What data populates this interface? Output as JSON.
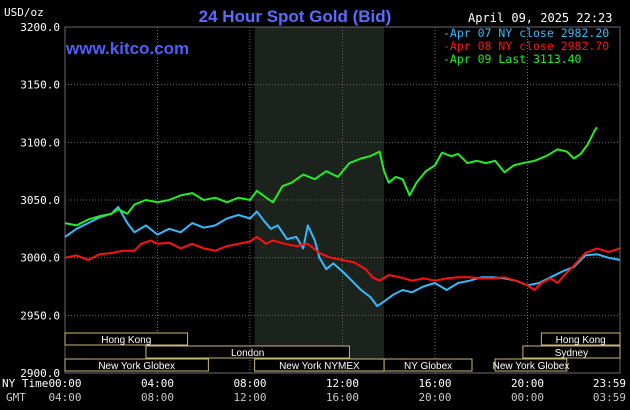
{
  "title": "24 Hour Spot Gold (Bid)",
  "timestamp": "April 09, 2025 22:23",
  "unit_label": "USD/oz",
  "site_label": "www.kitco.com",
  "time_row_labels": {
    "ny": "NY Time",
    "gmt": "GMT"
  },
  "colors": {
    "background": "#000000",
    "plot_background": "#000000",
    "session_shade": "#1c221c",
    "grid": "#6a6a6a",
    "title": "#5a6cff",
    "site": "#4f5dff",
    "apr07": "#33bbff",
    "apr08": "#ff1111",
    "apr09": "#22ee22",
    "session_box": "#c8b878",
    "text": "#ffffff",
    "gmt_text": "#c8c8c8"
  },
  "chart_data": {
    "type": "line",
    "title": "24 Hour Spot Gold (Bid)",
    "ylabel": "USD/oz",
    "ylim": [
      2900,
      3200
    ],
    "y_ticks": [
      {
        "value": 3200,
        "label": "3200.0"
      },
      {
        "value": 3150,
        "label": "3150.0"
      },
      {
        "value": 3100,
        "label": "3100.0"
      },
      {
        "value": 3050,
        "label": "3050.0"
      },
      {
        "value": 3000,
        "label": "3000.0"
      },
      {
        "value": 2950,
        "label": "2950.0"
      },
      {
        "value": 2900,
        "label": "2900.0"
      }
    ],
    "xlim": [
      0,
      24
    ],
    "x_ticks": [
      {
        "hour": 0,
        "ny": "00:00",
        "gmt": "04:00"
      },
      {
        "hour": 4,
        "ny": "04:00",
        "gmt": "08:00"
      },
      {
        "hour": 8,
        "ny": "08:00",
        "gmt": "12:00"
      },
      {
        "hour": 12,
        "ny": "12:00",
        "gmt": "16:00"
      },
      {
        "hour": 16,
        "ny": "16:00",
        "gmt": "20:00"
      },
      {
        "hour": 20,
        "ny": "20:00",
        "gmt": "00:00"
      },
      {
        "hour": 24,
        "ny": "23:59",
        "gmt": "03:59"
      }
    ],
    "grid": true,
    "legend_position": "top-right",
    "shaded_session": [
      8.2,
      13.8
    ],
    "series": [
      {
        "name": "Apr 07 NY close 2982.20",
        "color_key": "apr07",
        "points": [
          [
            0,
            3018
          ],
          [
            0.5,
            3025
          ],
          [
            1,
            3030
          ],
          [
            1.5,
            3035
          ],
          [
            2,
            3038
          ],
          [
            2.3,
            3044
          ],
          [
            2.7,
            3030
          ],
          [
            3,
            3022
          ],
          [
            3.5,
            3028
          ],
          [
            4,
            3020
          ],
          [
            4.5,
            3025
          ],
          [
            5,
            3022
          ],
          [
            5.5,
            3030
          ],
          [
            6,
            3026
          ],
          [
            6.5,
            3028
          ],
          [
            7,
            3034
          ],
          [
            7.5,
            3037
          ],
          [
            8,
            3034
          ],
          [
            8.3,
            3040
          ],
          [
            8.6,
            3032
          ],
          [
            8.9,
            3025
          ],
          [
            9.2,
            3028
          ],
          [
            9.6,
            3016
          ],
          [
            10,
            3018
          ],
          [
            10.3,
            3008
          ],
          [
            10.5,
            3028
          ],
          [
            10.8,
            3015
          ],
          [
            11,
            3000
          ],
          [
            11.3,
            2990
          ],
          [
            11.6,
            2995
          ],
          [
            12,
            2988
          ],
          [
            12.4,
            2980
          ],
          [
            12.8,
            2972
          ],
          [
            13.2,
            2966
          ],
          [
            13.5,
            2958
          ],
          [
            13.8,
            2962
          ],
          [
            14.2,
            2968
          ],
          [
            14.6,
            2972
          ],
          [
            15,
            2970
          ],
          [
            15.5,
            2975
          ],
          [
            16,
            2978
          ],
          [
            16.5,
            2972
          ],
          [
            17,
            2978
          ],
          [
            17.5,
            2980
          ],
          [
            18,
            2983
          ],
          [
            18.5,
            2983
          ],
          [
            19,
            2982
          ],
          [
            19.5,
            2980
          ],
          [
            20,
            2976
          ],
          [
            20.5,
            2978
          ],
          [
            21,
            2983
          ],
          [
            21.5,
            2988
          ],
          [
            22,
            2992
          ],
          [
            22.5,
            3002
          ],
          [
            23,
            3003
          ],
          [
            23.5,
            3000
          ],
          [
            24,
            2998
          ]
        ]
      },
      {
        "name": "Apr 08 NY close 2982.70",
        "color_key": "apr08",
        "points": [
          [
            0,
            3000
          ],
          [
            0.5,
            3002
          ],
          [
            1,
            2998
          ],
          [
            1.5,
            3003
          ],
          [
            2,
            3004
          ],
          [
            2.5,
            3006
          ],
          [
            3,
            3006
          ],
          [
            3.3,
            3012
          ],
          [
            3.7,
            3015
          ],
          [
            4,
            3012
          ],
          [
            4.5,
            3013
          ],
          [
            5,
            3008
          ],
          [
            5.5,
            3012
          ],
          [
            6,
            3008
          ],
          [
            6.5,
            3006
          ],
          [
            7,
            3010
          ],
          [
            7.5,
            3012
          ],
          [
            8,
            3014
          ],
          [
            8.3,
            3018
          ],
          [
            8.7,
            3012
          ],
          [
            9,
            3015
          ],
          [
            9.5,
            3012
          ],
          [
            10,
            3010
          ],
          [
            10.5,
            3012
          ],
          [
            11,
            3004
          ],
          [
            11.5,
            3000
          ],
          [
            12,
            2998
          ],
          [
            12.5,
            2996
          ],
          [
            13,
            2990
          ],
          [
            13.3,
            2983
          ],
          [
            13.6,
            2980
          ],
          [
            14,
            2985
          ],
          [
            14.5,
            2983
          ],
          [
            15,
            2980
          ],
          [
            15.5,
            2982
          ],
          [
            16,
            2980
          ],
          [
            16.5,
            2982
          ],
          [
            17,
            2983
          ],
          [
            17.5,
            2983
          ],
          [
            18,
            2982
          ],
          [
            18.5,
            2982
          ],
          [
            19,
            2983
          ],
          [
            19.5,
            2980
          ],
          [
            20,
            2976
          ],
          [
            20.3,
            2972
          ],
          [
            20.6,
            2978
          ],
          [
            21,
            2982
          ],
          [
            21.3,
            2978
          ],
          [
            21.6,
            2985
          ],
          [
            22,
            2993
          ],
          [
            22.5,
            3004
          ],
          [
            23,
            3008
          ],
          [
            23.5,
            3005
          ],
          [
            24,
            3008
          ]
        ]
      },
      {
        "name": "Apr 09 Last 3113.40",
        "color_key": "apr09",
        "points": [
          [
            0,
            3030
          ],
          [
            0.5,
            3028
          ],
          [
            1,
            3033
          ],
          [
            1.5,
            3036
          ],
          [
            2,
            3038
          ],
          [
            2.3,
            3042
          ],
          [
            2.7,
            3038
          ],
          [
            3,
            3046
          ],
          [
            3.5,
            3050
          ],
          [
            4,
            3048
          ],
          [
            4.5,
            3050
          ],
          [
            5,
            3054
          ],
          [
            5.5,
            3056
          ],
          [
            6,
            3050
          ],
          [
            6.5,
            3052
          ],
          [
            7,
            3048
          ],
          [
            7.5,
            3052
          ],
          [
            8,
            3050
          ],
          [
            8.3,
            3058
          ],
          [
            8.7,
            3052
          ],
          [
            9,
            3048
          ],
          [
            9.4,
            3062
          ],
          [
            9.8,
            3065
          ],
          [
            10.3,
            3072
          ],
          [
            10.8,
            3068
          ],
          [
            11.3,
            3075
          ],
          [
            11.8,
            3070
          ],
          [
            12.3,
            3082
          ],
          [
            12.8,
            3086
          ],
          [
            13.2,
            3088
          ],
          [
            13.6,
            3092
          ],
          [
            13.8,
            3075
          ],
          [
            14,
            3065
          ],
          [
            14.3,
            3070
          ],
          [
            14.6,
            3068
          ],
          [
            14.9,
            3054
          ],
          [
            15.2,
            3065
          ],
          [
            15.6,
            3075
          ],
          [
            16,
            3080
          ],
          [
            16.3,
            3091
          ],
          [
            16.7,
            3088
          ],
          [
            17,
            3090
          ],
          [
            17.4,
            3082
          ],
          [
            17.8,
            3084
          ],
          [
            18.2,
            3082
          ],
          [
            18.6,
            3084
          ],
          [
            19,
            3074
          ],
          [
            19.4,
            3080
          ],
          [
            19.8,
            3082
          ],
          [
            20.3,
            3084
          ],
          [
            20.8,
            3088
          ],
          [
            21.3,
            3094
          ],
          [
            21.7,
            3092
          ],
          [
            22,
            3086
          ],
          [
            22.3,
            3090
          ],
          [
            22.6,
            3098
          ],
          [
            22.9,
            3110
          ],
          [
            23,
            3113
          ]
        ]
      }
    ]
  },
  "session_rows": [
    {
      "label": "Hong Kong",
      "start": 0,
      "end": 5.3,
      "row": 0
    },
    {
      "label": "London",
      "start": 3.5,
      "end": 12.3,
      "row": 1
    },
    {
      "label": "New York Globex",
      "start": 0,
      "end": 6.2,
      "row": 2
    },
    {
      "label": "New York NYMEX",
      "start": 8.2,
      "end": 13.8,
      "row": 2
    },
    {
      "label": "NY Globex",
      "start": 13.8,
      "end": 17.6,
      "row": 2
    },
    {
      "label": "Hong Kong",
      "start": 20.6,
      "end": 24,
      "row": 0
    },
    {
      "label": "Sydney",
      "start": 19.8,
      "end": 24,
      "row": 1
    },
    {
      "label": "New York Globex",
      "start": 18.6,
      "end": 21.7,
      "row": 2
    }
  ]
}
